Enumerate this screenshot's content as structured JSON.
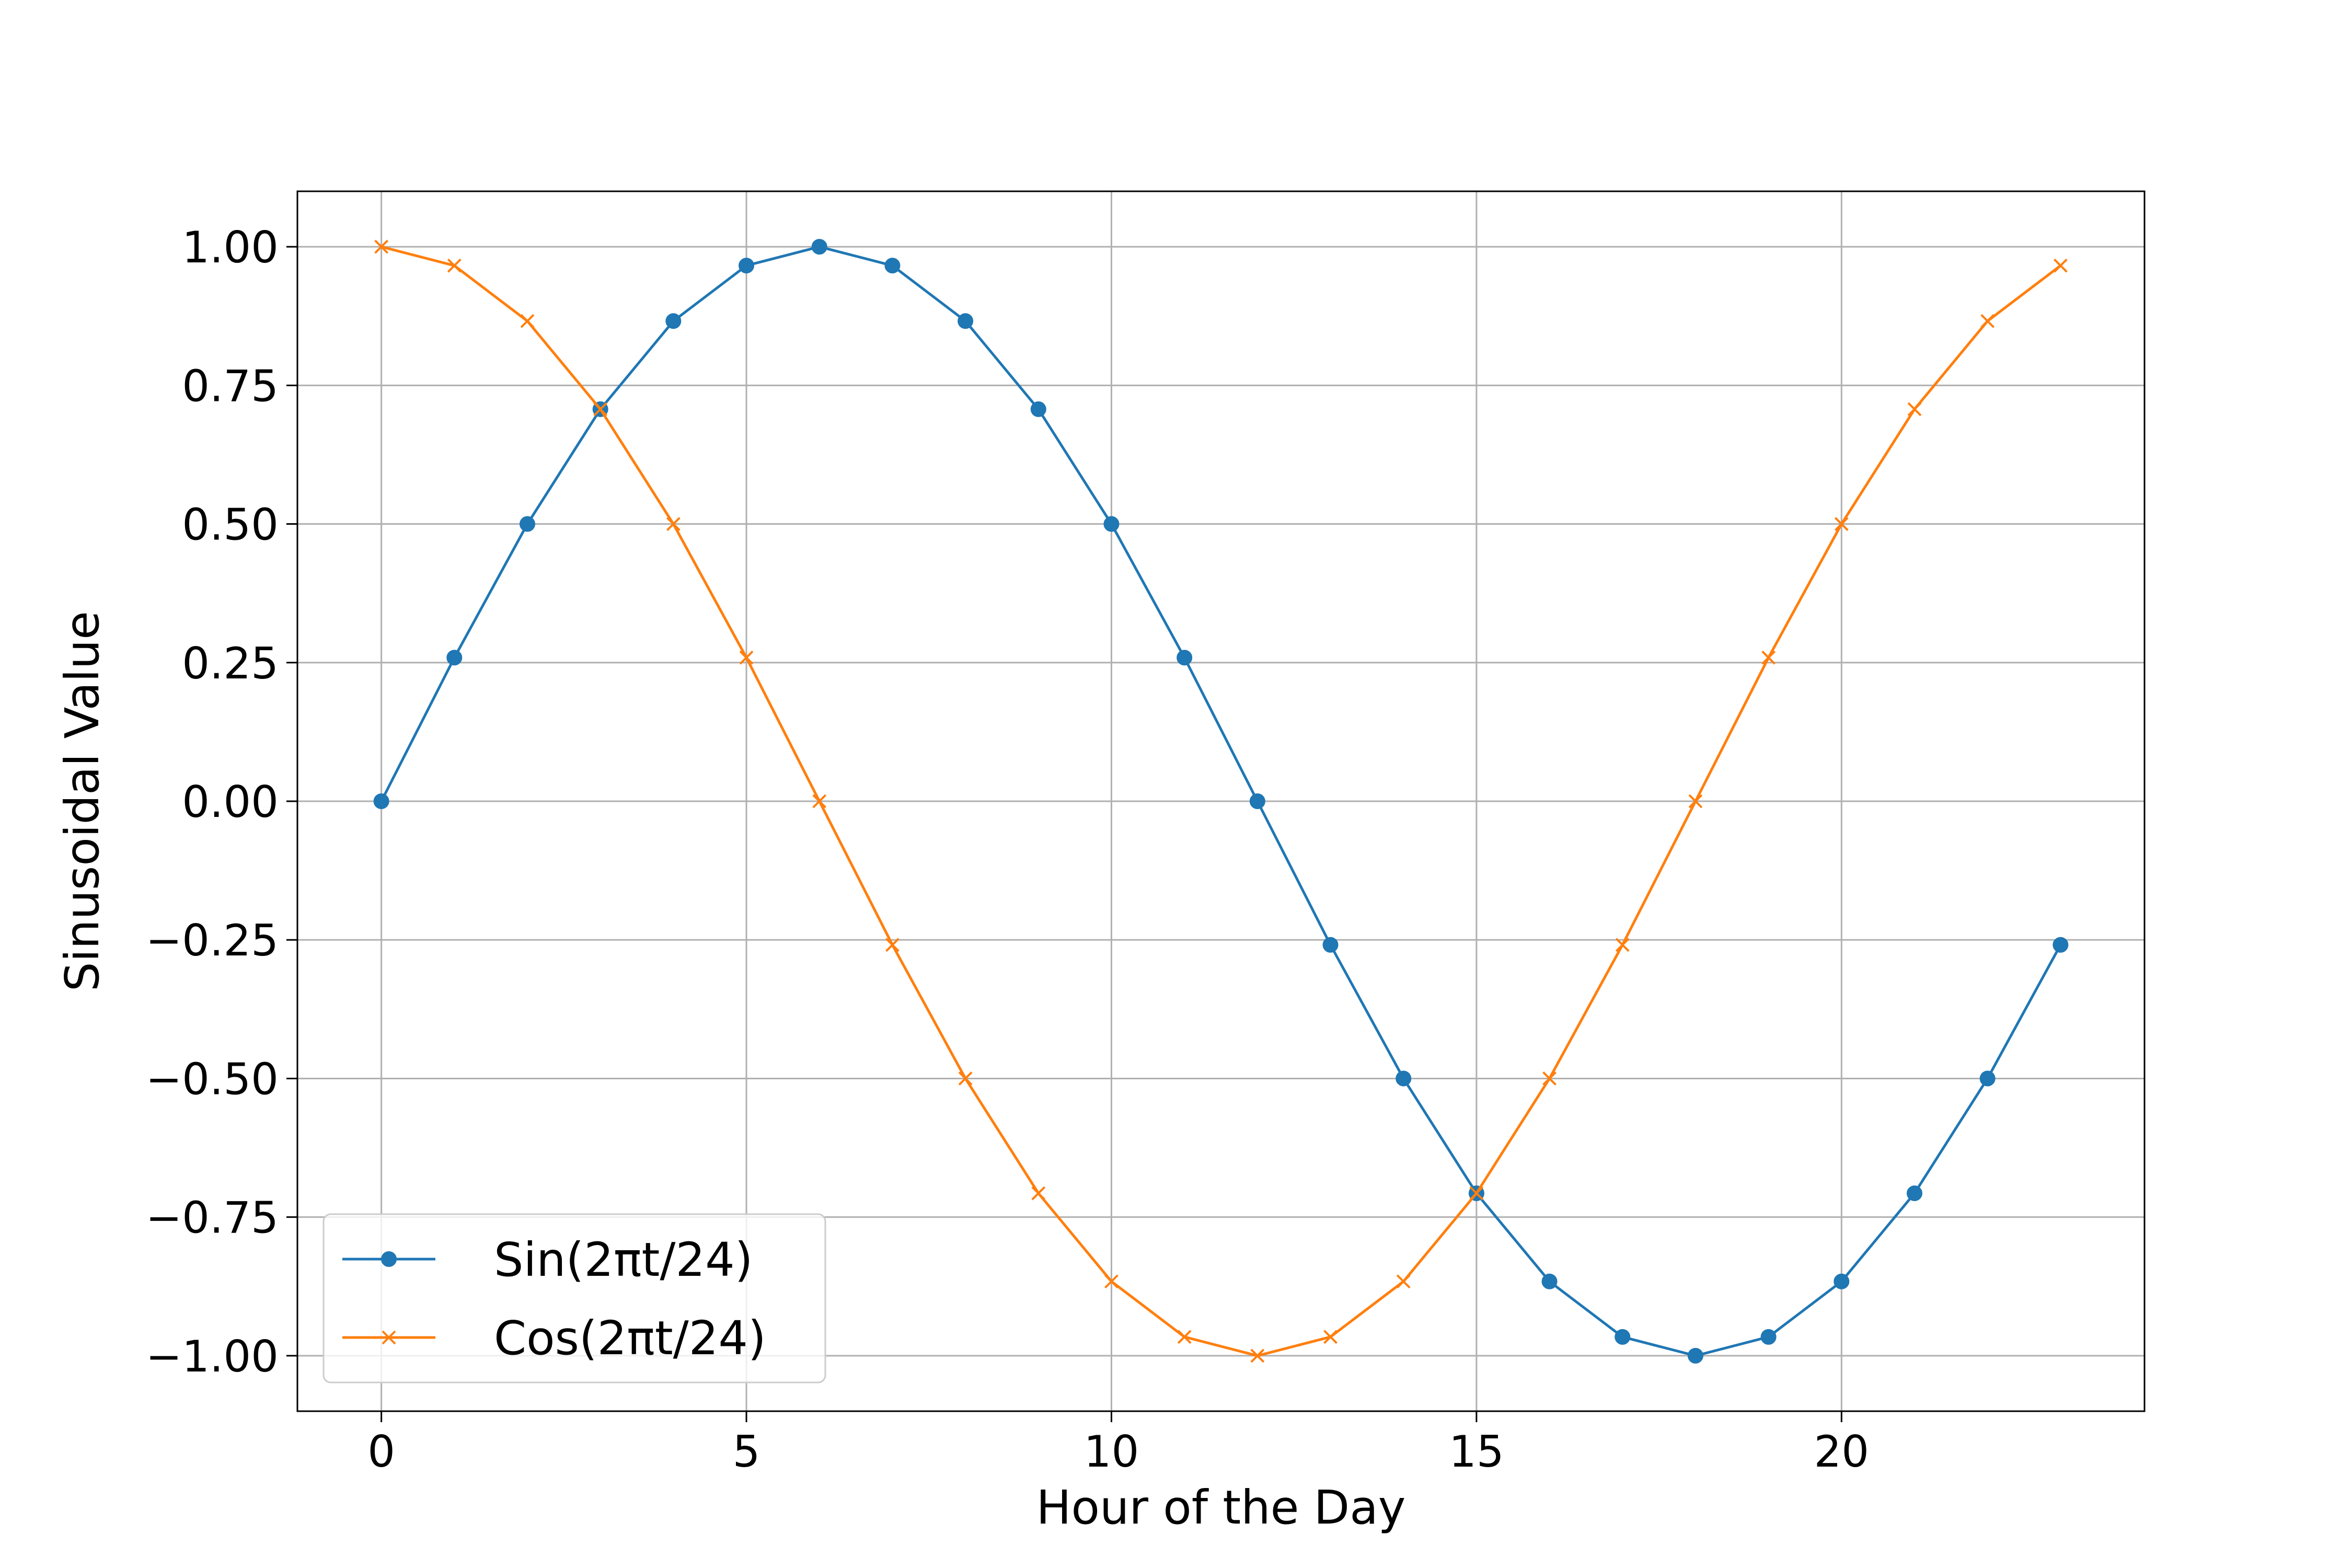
{
  "chart_data": {
    "type": "line",
    "title": "",
    "xlabel": "Hour of the Day",
    "ylabel": "Sinusoidal Value",
    "xlim": [
      -1.15,
      24.15
    ],
    "ylim": [
      -1.1,
      1.1
    ],
    "x_ticks": [
      0,
      5,
      10,
      15,
      20
    ],
    "x_tick_labels": [
      "0",
      "5",
      "10",
      "15",
      "20"
    ],
    "y_ticks": [
      1.0,
      0.75,
      0.5,
      0.25,
      0.0,
      -0.25,
      -0.5,
      -0.75,
      -1.0
    ],
    "y_tick_labels": [
      "1.00",
      "0.75",
      "0.50",
      "0.25",
      "0.00",
      "−0.25",
      "−0.50",
      "−0.75",
      "−1.00"
    ],
    "grid": true,
    "legend_position": "lower-left",
    "x": [
      0,
      1,
      2,
      3,
      4,
      5,
      6,
      7,
      8,
      9,
      10,
      11,
      12,
      13,
      14,
      15,
      16,
      17,
      18,
      19,
      20,
      21,
      22,
      23
    ],
    "series": [
      {
        "name": "Sin(2πt/24)",
        "color": "#1f77b4",
        "marker": "circle",
        "values": [
          0.0,
          0.259,
          0.5,
          0.707,
          0.866,
          0.966,
          1.0,
          0.966,
          0.866,
          0.707,
          0.5,
          0.259,
          0.0,
          -0.259,
          -0.5,
          -0.707,
          -0.866,
          -0.966,
          -1.0,
          -0.966,
          -0.866,
          -0.707,
          -0.5,
          -0.259
        ]
      },
      {
        "name": "Cos(2πt/24)",
        "color": "#ff7f0e",
        "marker": "x",
        "values": [
          1.0,
          0.966,
          0.866,
          0.707,
          0.5,
          0.259,
          0.0,
          -0.259,
          -0.5,
          -0.707,
          -0.866,
          -0.966,
          -1.0,
          -0.966,
          -0.866,
          -0.707,
          -0.5,
          -0.259,
          0.0,
          0.259,
          0.5,
          0.707,
          0.866,
          0.966
        ]
      }
    ]
  }
}
